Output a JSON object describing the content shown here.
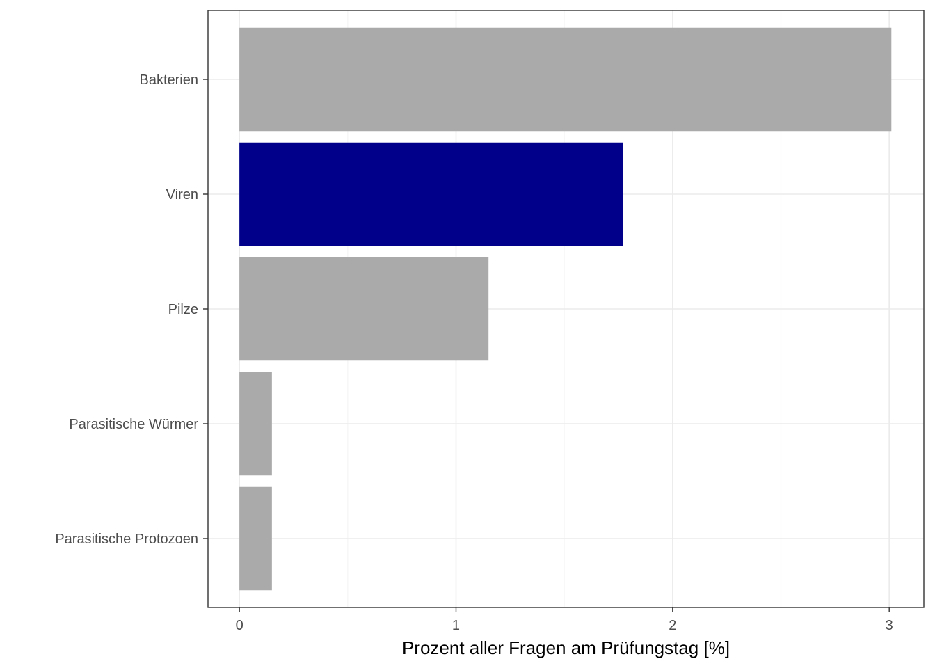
{
  "chart_data": {
    "type": "bar",
    "orientation": "horizontal",
    "categories": [
      "Bakterien",
      "Viren",
      "Pilze",
      "Parasitische Würmer",
      "Parasitische Protozoen"
    ],
    "values": [
      3.01,
      1.77,
      1.15,
      0.15,
      0.15
    ],
    "colors": [
      "#aaaaaa",
      "#00008b",
      "#aaaaaa",
      "#aaaaaa",
      "#aaaaaa"
    ],
    "xlabel": "Prozent aller Fragen am Prüfungstag [%]",
    "ylabel": "",
    "xlim": [
      -0.145,
      3.16
    ],
    "x_ticks": [
      0,
      1,
      2,
      3
    ],
    "x_tick_labels": [
      "0",
      "1",
      "2",
      "3"
    ],
    "grid": true,
    "legend": "none",
    "theme": {
      "panel_border": "#333333",
      "grid_major": "#ebebeb",
      "grid_minor": "#f5f5f5",
      "tick_label_color": "#4d4d4d"
    }
  }
}
